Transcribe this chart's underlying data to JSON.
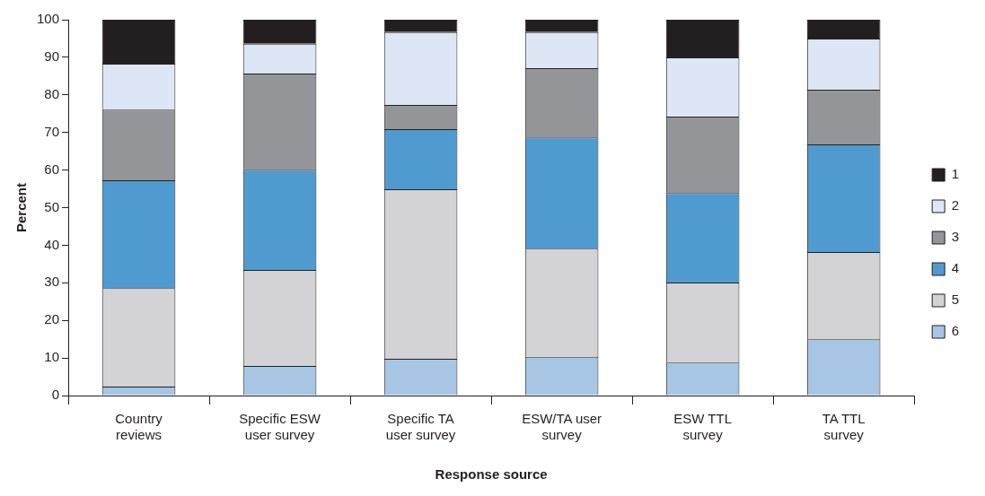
{
  "chart_data": {
    "type": "bar",
    "stacked": true,
    "xlabel": "Response source",
    "ylabel": "Percent",
    "categories": [
      "Country reviews",
      "Specific ESW user survey",
      "Specific TA user survey",
      "ESW/TA user survey",
      "ESW TTL survey",
      "TA TTL survey"
    ],
    "series": [
      {
        "name": "6",
        "color": "#a6c6e4",
        "values": [
          2.4,
          7.9,
          9.8,
          10.3,
          8.8,
          15.0
        ]
      },
      {
        "name": "5",
        "color": "#d3d3d5",
        "values": [
          26.2,
          25.5,
          45.1,
          28.8,
          21.3,
          23.2
        ]
      },
      {
        "name": "4",
        "color": "#4f9bd0",
        "values": [
          28.7,
          26.7,
          16.0,
          29.6,
          23.8,
          28.6
        ]
      },
      {
        "name": "3",
        "color": "#939598",
        "values": [
          18.8,
          25.6,
          6.4,
          18.4,
          20.3,
          14.6
        ]
      },
      {
        "name": "2",
        "color": "#dce6f4",
        "values": [
          12.2,
          7.9,
          19.4,
          9.6,
          15.8,
          13.6
        ]
      },
      {
        "name": "1",
        "color": "#231f20",
        "values": [
          11.7,
          6.4,
          3.3,
          3.3,
          10.0,
          5.0
        ]
      }
    ],
    "ylim": [
      0,
      100
    ],
    "yticks": [
      0,
      10,
      20,
      30,
      40,
      50,
      60,
      70,
      80,
      90,
      100
    ],
    "grid": false,
    "legend": "right"
  }
}
